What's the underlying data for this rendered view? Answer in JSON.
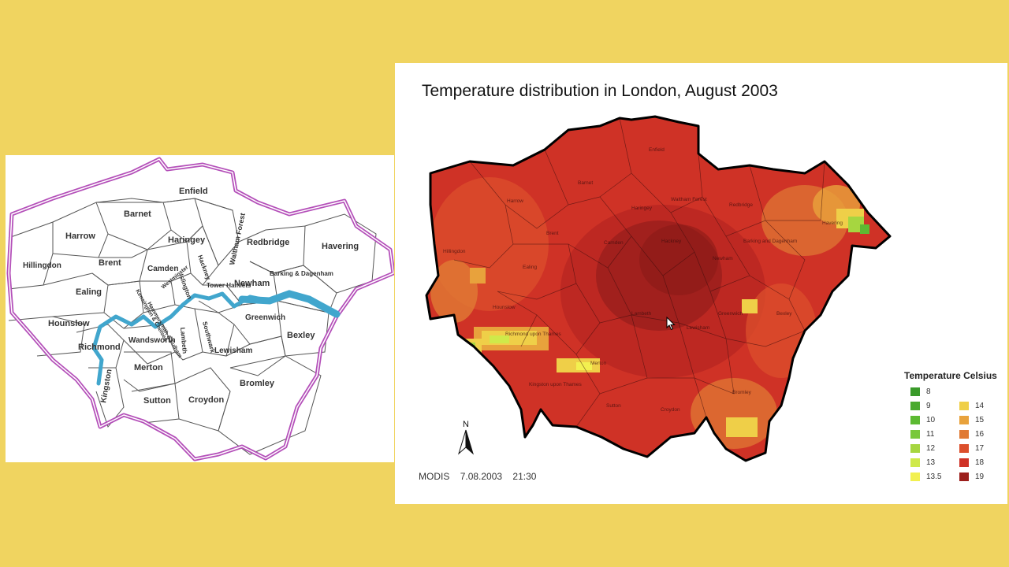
{
  "slide": {
    "background": "#f0d460"
  },
  "borough_map": {
    "river_color": "#41a6cd",
    "border_color": "#b44fb9",
    "boroughs": [
      "Enfield",
      "Barnet",
      "Harrow",
      "Haringey",
      "Waltham Forest",
      "Redbridge",
      "Havering",
      "Hillingdon",
      "Brent",
      "Camden",
      "Islington",
      "Hackney",
      "Ealing",
      "Newham",
      "Barking & Dagenham",
      "Tower Hamlets",
      "Kensington & Chelsea",
      "Hammersmith & Fulham",
      "Westminster",
      "Hounslow",
      "Greenwich",
      "Bexley",
      "Richmond",
      "Wandsworth",
      "Lambeth",
      "Southwark",
      "Lewisham",
      "Kingston",
      "Merton",
      "Sutton",
      "Croydon",
      "Bromley"
    ]
  },
  "temp_map": {
    "title": "Temperature distribution in London, August 2003",
    "footer": {
      "source": "MODIS",
      "date": "7.08.2003",
      "time": "21:30"
    },
    "north_label": "N",
    "borough_labels": [
      "Enfield",
      "Barnet",
      "Harrow",
      "Haringey",
      "Waltham Forest",
      "Redbridge",
      "Havering",
      "Hillingdon",
      "Brent",
      "Camden",
      "Hackney",
      "Barking and Dagenham",
      "Newham",
      "Ealing",
      "Hounslow",
      "Greenwich",
      "Bexley",
      "Richmond upon Thames",
      "Kingston upon Thames",
      "Lambeth",
      "Lewisham",
      "Merton",
      "Sutton",
      "Croydon",
      "Bromley"
    ],
    "legend": {
      "title": "Temperature Celsius",
      "items": [
        {
          "label": "8",
          "color": "#3a9a2a"
        },
        {
          "label": "9",
          "color": "#4aaa2e"
        },
        {
          "label": "10",
          "color": "#5cba32"
        },
        {
          "label": "11",
          "color": "#78c83a"
        },
        {
          "label": "12",
          "color": "#a6d640"
        },
        {
          "label": "13",
          "color": "#cfe94a"
        },
        {
          "label": "13.5",
          "color": "#f2f050"
        },
        {
          "label": "14",
          "color": "#efcf48"
        },
        {
          "label": "15",
          "color": "#e8a23c"
        },
        {
          "label": "16",
          "color": "#e07a34"
        },
        {
          "label": "17",
          "color": "#dc4f2c"
        },
        {
          "label": "18",
          "color": "#cf3226"
        },
        {
          "label": "19",
          "color": "#9c1f1c"
        }
      ]
    }
  }
}
